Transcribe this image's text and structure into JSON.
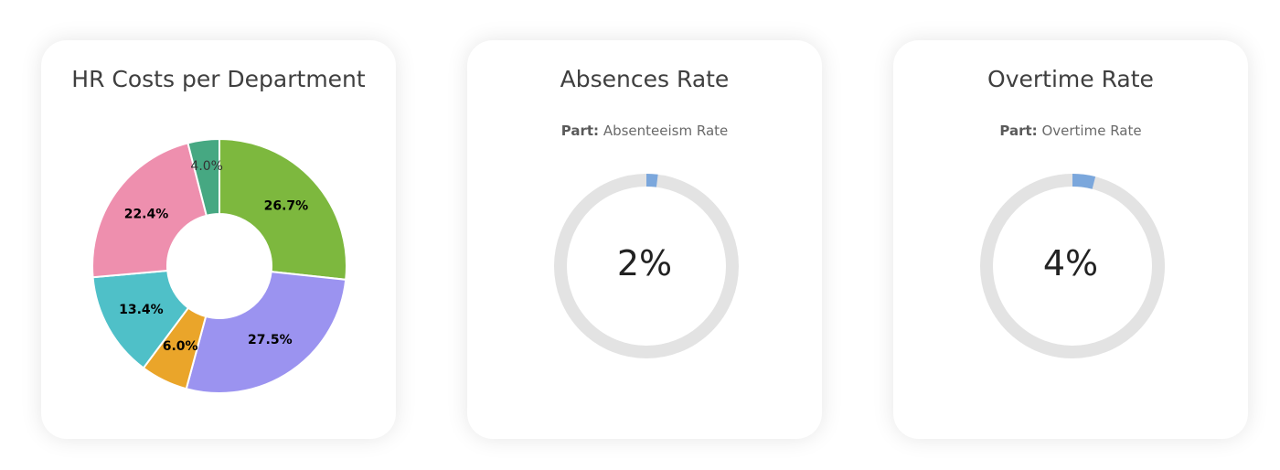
{
  "colors": {
    "card_bg": "#ffffff",
    "gauge_track": "#e3e3e3",
    "gauge_fill": "#7ba7dc"
  },
  "hr_costs": {
    "title": "HR Costs per Department"
  },
  "absences": {
    "title": "Absences Rate",
    "part_key": "Part:",
    "part_value": "Absenteeism Rate",
    "value_label": "2%"
  },
  "overtime": {
    "title": "Overtime Rate",
    "part_key": "Part:",
    "part_value": "Overtime Rate",
    "value_label": "4%"
  },
  "chart_data": [
    {
      "type": "pie",
      "title": "HR Costs per Department",
      "donut": true,
      "slices": [
        {
          "value": 26.7,
          "label": "26.7%",
          "color": "#7db83e"
        },
        {
          "value": 27.5,
          "label": "27.5%",
          "color": "#9b93f0"
        },
        {
          "value": 6.0,
          "label": "6.0%",
          "color": "#eaa52a"
        },
        {
          "value": 13.4,
          "label": "13.4%",
          "color": "#4fc0c8"
        },
        {
          "value": 22.4,
          "label": "22.4%",
          "color": "#ee8fae"
        },
        {
          "value": 4.0,
          "label": "4.0%",
          "color": "#46a882"
        }
      ]
    },
    {
      "type": "pie",
      "title": "Absences Rate",
      "series": [
        {
          "name": "Absenteeism Rate",
          "values": [
            2
          ]
        }
      ],
      "max": 100
    },
    {
      "type": "pie",
      "title": "Overtime Rate",
      "series": [
        {
          "name": "Overtime Rate",
          "values": [
            4
          ]
        }
      ],
      "max": 100
    }
  ]
}
